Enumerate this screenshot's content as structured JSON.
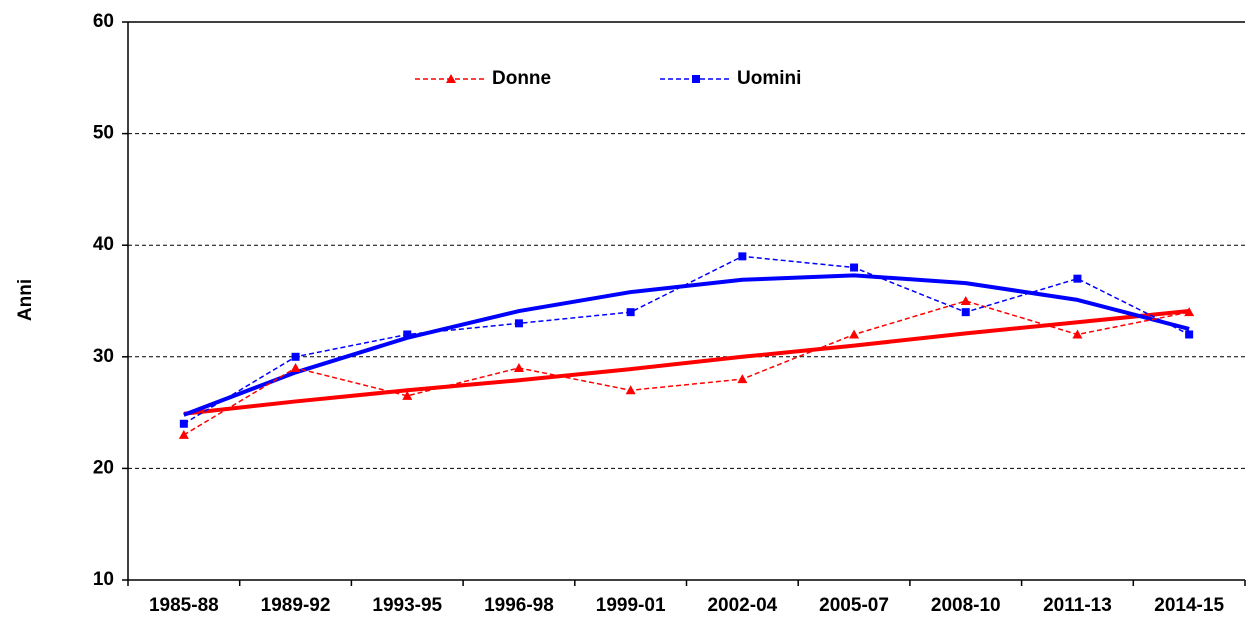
{
  "chart_data": {
    "type": "line",
    "y_label": "Anni",
    "categories": [
      "1985-88",
      "1989-92",
      "1993-95",
      "1996-98",
      "1999-01",
      "2002-04",
      "2005-07",
      "2008-10",
      "2011-13",
      "2014-15"
    ],
    "series": [
      {
        "name": "Donne",
        "color": "#ff0000",
        "marker": "triangle",
        "values": [
          23,
          29,
          26.5,
          29,
          27,
          28,
          32,
          35,
          32,
          34
        ]
      },
      {
        "name": "Uomini",
        "color": "#0000ff",
        "marker": "square",
        "values": [
          24,
          30,
          32,
          33,
          34,
          39,
          38,
          34,
          37,
          32
        ]
      }
    ],
    "trendlines": [
      {
        "color": "#ff0000",
        "values": [
          24.9,
          26,
          27,
          27.9,
          28.9,
          30,
          31,
          32.1,
          33.1,
          34.1
        ]
      },
      {
        "color": "#0000ff",
        "values": [
          24.8,
          28.6,
          31.7,
          34.1,
          35.8,
          36.9,
          37.3,
          36.6,
          35.1,
          32.5
        ]
      }
    ],
    "ylim": [
      10,
      60
    ],
    "yticks": [
      10,
      20,
      30,
      40,
      50,
      60
    ],
    "grid": true,
    "legend": "top"
  }
}
